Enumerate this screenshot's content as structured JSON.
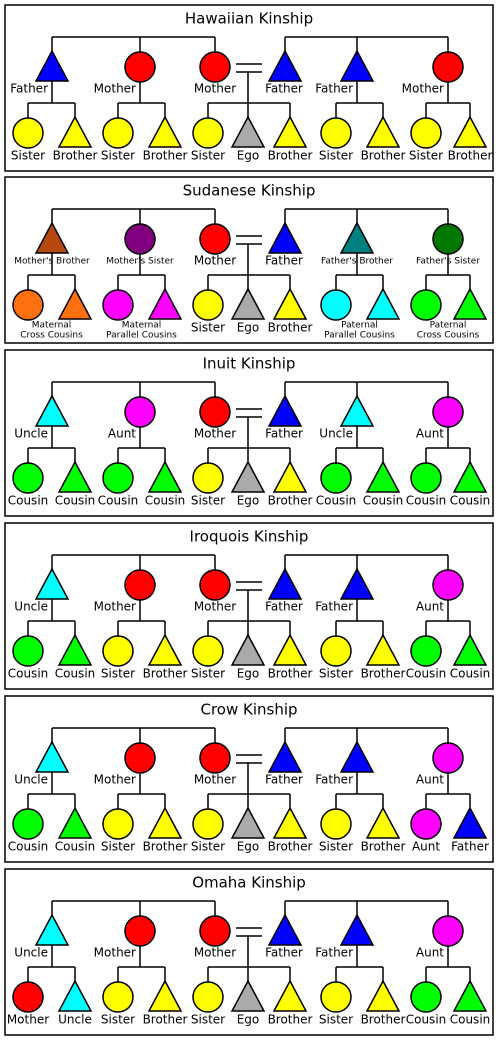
{
  "panels": [
    {
      "title": "Hawaiian Kinship",
      "parents": [
        {
          "label": "Father",
          "shape": "triangle",
          "color": "#0000ff"
        },
        {
          "label": "Mother",
          "shape": "circle",
          "color": "#ff0000"
        },
        {
          "label": "Mother",
          "shape": "circle",
          "color": "#ff0000"
        },
        {
          "label": "Father",
          "shape": "triangle",
          "color": "#0000ff"
        },
        {
          "label": "Father",
          "shape": "triangle",
          "color": "#0000ff"
        },
        {
          "label": "Mother",
          "shape": "circle",
          "color": "#ff0000"
        }
      ],
      "groups": [
        {
          "children": [
            {
              "label": "Sister",
              "shape": "circle",
              "color": "#ffff00"
            },
            {
              "label": "Brother",
              "shape": "triangle",
              "color": "#ffff00"
            }
          ]
        },
        {
          "children": [
            {
              "label": "Sister",
              "shape": "circle",
              "color": "#ffff00"
            },
            {
              "label": "Brother",
              "shape": "triangle",
              "color": "#ffff00"
            }
          ]
        },
        {
          "children": [
            {
              "label": "Sister",
              "shape": "circle",
              "color": "#ffff00"
            },
            {
              "label": "Ego",
              "shape": "triangle",
              "color": "#aaaaaa"
            },
            {
              "label": "Brother",
              "shape": "triangle",
              "color": "#ffff00"
            }
          ]
        },
        {
          "children": [
            {
              "label": "Sister",
              "shape": "circle",
              "color": "#ffff00"
            },
            {
              "label": "Brother",
              "shape": "triangle",
              "color": "#ffff00"
            }
          ]
        },
        {
          "children": [
            {
              "label": "Sister",
              "shape": "circle",
              "color": "#ffff00"
            },
            {
              "label": "Brother",
              "shape": "triangle",
              "color": "#ffff00"
            }
          ]
        }
      ]
    },
    {
      "title": "Sudanese Kinship",
      "parents": [
        {
          "label": "Mother's Brother",
          "shape": "triangle",
          "color": "#b5480c"
        },
        {
          "label": "Mother's Sister",
          "shape": "circle",
          "color": "#800080"
        },
        {
          "label": "Mother",
          "shape": "circle",
          "color": "#ff0000"
        },
        {
          "label": "Father",
          "shape": "triangle",
          "color": "#0000ff"
        },
        {
          "label": "Father's Brother",
          "shape": "triangle",
          "color": "#008080"
        },
        {
          "label": "Father's Sister",
          "shape": "circle",
          "color": "#007800"
        }
      ],
      "groups": [
        {
          "label": [
            "Maternal",
            "Cross Cousins"
          ],
          "children": [
            {
              "shape": "circle",
              "color": "#ff7010"
            },
            {
              "shape": "triangle",
              "color": "#ff7010"
            }
          ]
        },
        {
          "label": [
            "Maternal",
            "Parallel Cousins"
          ],
          "children": [
            {
              "shape": "circle",
              "color": "#ff00ff"
            },
            {
              "shape": "triangle",
              "color": "#ff00ff"
            }
          ]
        },
        {
          "children": [
            {
              "label": "Sister",
              "shape": "circle",
              "color": "#ffff00"
            },
            {
              "label": "Ego",
              "shape": "triangle",
              "color": "#aaaaaa"
            },
            {
              "label": "Brother",
              "shape": "triangle",
              "color": "#ffff00"
            }
          ]
        },
        {
          "label": [
            "Paternal",
            "Parallel Cousins"
          ],
          "children": [
            {
              "shape": "circle",
              "color": "#00ffff"
            },
            {
              "shape": "triangle",
              "color": "#00ffff"
            }
          ]
        },
        {
          "label": [
            "Paternal",
            "Cross Cousins"
          ],
          "children": [
            {
              "shape": "circle",
              "color": "#00ff00"
            },
            {
              "shape": "triangle",
              "color": "#00ff00"
            }
          ]
        }
      ]
    },
    {
      "title": "Inuit Kinship",
      "parents": [
        {
          "label": "Uncle",
          "shape": "triangle",
          "color": "#00ffff"
        },
        {
          "label": "Aunt",
          "shape": "circle",
          "color": "#ff00ff"
        },
        {
          "label": "Mother",
          "shape": "circle",
          "color": "#ff0000"
        },
        {
          "label": "Father",
          "shape": "triangle",
          "color": "#0000ff"
        },
        {
          "label": "Uncle",
          "shape": "triangle",
          "color": "#00ffff"
        },
        {
          "label": "Aunt",
          "shape": "circle",
          "color": "#ff00ff"
        }
      ],
      "groups": [
        {
          "children": [
            {
              "label": "Cousin",
              "shape": "circle",
              "color": "#00ff00"
            },
            {
              "label": "Cousin",
              "shape": "triangle",
              "color": "#00ff00"
            }
          ]
        },
        {
          "children": [
            {
              "label": "Cousin",
              "shape": "circle",
              "color": "#00ff00"
            },
            {
              "label": "Cousin",
              "shape": "triangle",
              "color": "#00ff00"
            }
          ]
        },
        {
          "children": [
            {
              "label": "Sister",
              "shape": "circle",
              "color": "#ffff00"
            },
            {
              "label": "Ego",
              "shape": "triangle",
              "color": "#aaaaaa"
            },
            {
              "label": "Brother",
              "shape": "triangle",
              "color": "#ffff00"
            }
          ]
        },
        {
          "children": [
            {
              "label": "Cousin",
              "shape": "circle",
              "color": "#00ff00"
            },
            {
              "label": "Cousin",
              "shape": "triangle",
              "color": "#00ff00"
            }
          ]
        },
        {
          "children": [
            {
              "label": "Cousin",
              "shape": "circle",
              "color": "#00ff00"
            },
            {
              "label": "Cousin",
              "shape": "triangle",
              "color": "#00ff00"
            }
          ]
        }
      ]
    },
    {
      "title": "Iroquois Kinship",
      "parents": [
        {
          "label": "Uncle",
          "shape": "triangle",
          "color": "#00ffff"
        },
        {
          "label": "Mother",
          "shape": "circle",
          "color": "#ff0000"
        },
        {
          "label": "Mother",
          "shape": "circle",
          "color": "#ff0000"
        },
        {
          "label": "Father",
          "shape": "triangle",
          "color": "#0000ff"
        },
        {
          "label": "Father",
          "shape": "triangle",
          "color": "#0000ff"
        },
        {
          "label": "Aunt",
          "shape": "circle",
          "color": "#ff00ff"
        }
      ],
      "groups": [
        {
          "children": [
            {
              "label": "Cousin",
              "shape": "circle",
              "color": "#00ff00"
            },
            {
              "label": "Cousin",
              "shape": "triangle",
              "color": "#00ff00"
            }
          ]
        },
        {
          "children": [
            {
              "label": "Sister",
              "shape": "circle",
              "color": "#ffff00"
            },
            {
              "label": "Brother",
              "shape": "triangle",
              "color": "#ffff00"
            }
          ]
        },
        {
          "children": [
            {
              "label": "Sister",
              "shape": "circle",
              "color": "#ffff00"
            },
            {
              "label": "Ego",
              "shape": "triangle",
              "color": "#aaaaaa"
            },
            {
              "label": "Brother",
              "shape": "triangle",
              "color": "#ffff00"
            }
          ]
        },
        {
          "children": [
            {
              "label": "Sister",
              "shape": "circle",
              "color": "#ffff00"
            },
            {
              "label": "Brother",
              "shape": "triangle",
              "color": "#ffff00"
            }
          ]
        },
        {
          "children": [
            {
              "label": "Cousin",
              "shape": "circle",
              "color": "#00ff00"
            },
            {
              "label": "Cousin",
              "shape": "triangle",
              "color": "#00ff00"
            }
          ]
        }
      ]
    },
    {
      "title": "Crow Kinship",
      "parents": [
        {
          "label": "Uncle",
          "shape": "triangle",
          "color": "#00ffff"
        },
        {
          "label": "Mother",
          "shape": "circle",
          "color": "#ff0000"
        },
        {
          "label": "Mother",
          "shape": "circle",
          "color": "#ff0000"
        },
        {
          "label": "Father",
          "shape": "triangle",
          "color": "#0000ff"
        },
        {
          "label": "Father",
          "shape": "triangle",
          "color": "#0000ff"
        },
        {
          "label": "Aunt",
          "shape": "circle",
          "color": "#ff00ff"
        }
      ],
      "groups": [
        {
          "children": [
            {
              "label": "Cousin",
              "shape": "circle",
              "color": "#00ff00"
            },
            {
              "label": "Cousin",
              "shape": "triangle",
              "color": "#00ff00"
            }
          ]
        },
        {
          "children": [
            {
              "label": "Sister",
              "shape": "circle",
              "color": "#ffff00"
            },
            {
              "label": "Brother",
              "shape": "triangle",
              "color": "#ffff00"
            }
          ]
        },
        {
          "children": [
            {
              "label": "Sister",
              "shape": "circle",
              "color": "#ffff00"
            },
            {
              "label": "Ego",
              "shape": "triangle",
              "color": "#aaaaaa"
            },
            {
              "label": "Brother",
              "shape": "triangle",
              "color": "#ffff00"
            }
          ]
        },
        {
          "children": [
            {
              "label": "Sister",
              "shape": "circle",
              "color": "#ffff00"
            },
            {
              "label": "Brother",
              "shape": "triangle",
              "color": "#ffff00"
            }
          ]
        },
        {
          "children": [
            {
              "label": "Aunt",
              "shape": "circle",
              "color": "#ff00ff"
            },
            {
              "label": "Father",
              "shape": "triangle",
              "color": "#0000ff"
            }
          ]
        }
      ]
    },
    {
      "title": "Omaha Kinship",
      "parents": [
        {
          "label": "Uncle",
          "shape": "triangle",
          "color": "#00ffff"
        },
        {
          "label": "Mother",
          "shape": "circle",
          "color": "#ff0000"
        },
        {
          "label": "Mother",
          "shape": "circle",
          "color": "#ff0000"
        },
        {
          "label": "Father",
          "shape": "triangle",
          "color": "#0000ff"
        },
        {
          "label": "Father",
          "shape": "triangle",
          "color": "#0000ff"
        },
        {
          "label": "Aunt",
          "shape": "circle",
          "color": "#ff00ff"
        }
      ],
      "groups": [
        {
          "children": [
            {
              "label": "Mother",
              "shape": "circle",
              "color": "#ff0000"
            },
            {
              "label": "Uncle",
              "shape": "triangle",
              "color": "#00ffff"
            }
          ]
        },
        {
          "children": [
            {
              "label": "Sister",
              "shape": "circle",
              "color": "#ffff00"
            },
            {
              "label": "Brother",
              "shape": "triangle",
              "color": "#ffff00"
            }
          ]
        },
        {
          "children": [
            {
              "label": "Sister",
              "shape": "circle",
              "color": "#ffff00"
            },
            {
              "label": "Ego",
              "shape": "triangle",
              "color": "#aaaaaa"
            },
            {
              "label": "Brother",
              "shape": "triangle",
              "color": "#ffff00"
            }
          ]
        },
        {
          "children": [
            {
              "label": "Sister",
              "shape": "circle",
              "color": "#ffff00"
            },
            {
              "label": "Brother",
              "shape": "triangle",
              "color": "#ffff00"
            }
          ]
        },
        {
          "children": [
            {
              "label": "Cousin",
              "shape": "circle",
              "color": "#00ff00"
            },
            {
              "label": "Cousin",
              "shape": "triangle",
              "color": "#00ff00"
            }
          ]
        }
      ]
    }
  ]
}
